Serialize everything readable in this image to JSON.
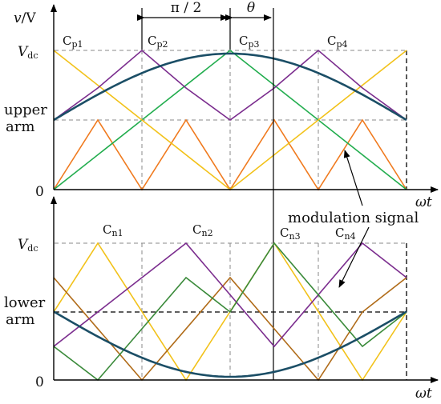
{
  "upper_plot": {
    "y_axis_label_v": "v",
    "y_axis_label_sep": "/V",
    "vdc_v": "V",
    "vdc_sub": "dc",
    "zero_label": "0",
    "x_axis_label": "ωt",
    "arm_label_line1": "upper",
    "arm_label_line2": "arm",
    "carriers": [
      {
        "letter": "C",
        "sub": "p1"
      },
      {
        "letter": "C",
        "sub": "p2"
      },
      {
        "letter": "C",
        "sub": "p3"
      },
      {
        "letter": "C",
        "sub": "p4"
      }
    ]
  },
  "lower_plot": {
    "vdc_v": "V",
    "vdc_sub": "dc",
    "zero_label": "0",
    "x_axis_label": "ωt",
    "arm_label_line1": "lower",
    "arm_label_line2": "arm",
    "carriers": [
      {
        "letter": "C",
        "sub": "n1"
      },
      {
        "letter": "C",
        "sub": "n2"
      },
      {
        "letter": "C",
        "sub": "n3"
      },
      {
        "letter": "C",
        "sub": "n4"
      }
    ]
  },
  "annotations": {
    "phase_shift": "π / 2",
    "theta": "θ",
    "modulation_signal": "modulation signal"
  },
  "colors": {
    "modulation": "#1b4e66",
    "orange": "#f07a1e",
    "green": "#22ad4e",
    "yellow": "#f2c21a",
    "purple": "#7b2d8e",
    "dark_orange": "#b06b18",
    "dark_green": "#3a8a3a"
  }
}
